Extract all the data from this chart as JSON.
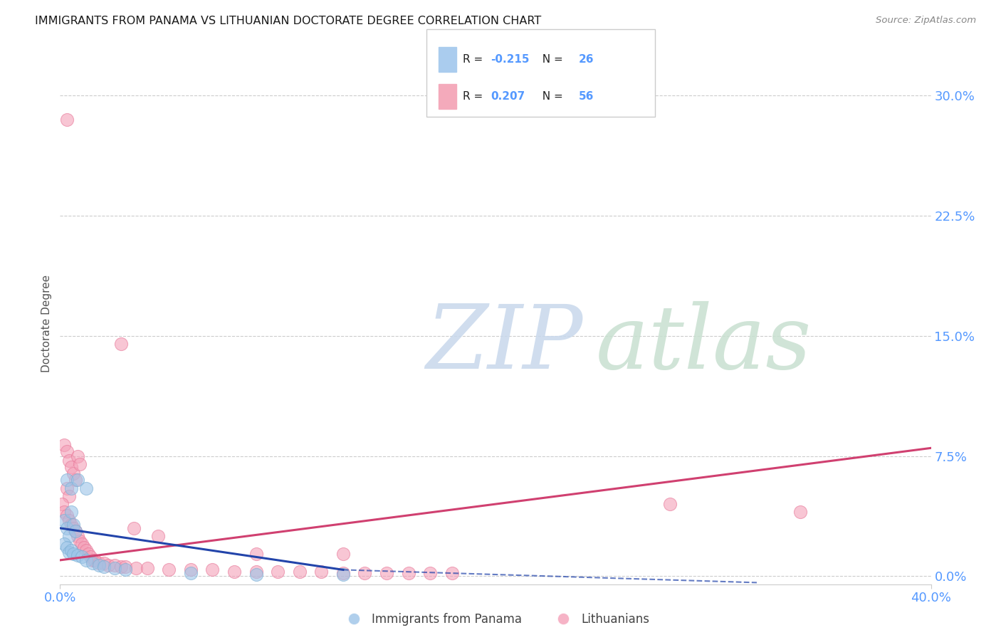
{
  "title": "IMMIGRANTS FROM PANAMA VS LITHUANIAN DOCTORATE DEGREE CORRELATION CHART",
  "source": "Source: ZipAtlas.com",
  "ylabel": "Doctorate Degree",
  "xlim": [
    0.0,
    0.4
  ],
  "ylim": [
    -0.005,
    0.32
  ],
  "yticks": [
    0.0,
    0.075,
    0.15,
    0.225,
    0.3
  ],
  "xticks": [
    0.0,
    0.4
  ],
  "legend_bottom": [
    "Immigrants from Panama",
    "Lithuanians"
  ],
  "panama_color": "#9cc4e8",
  "panama_edge_color": "#7bafd4",
  "lithuanian_color": "#f4a0b8",
  "lithuanian_edge_color": "#e8799a",
  "panama_trend_color": "#2244aa",
  "lithuanian_trend_color": "#d04070",
  "watermark_zip_color": "#c8d8ec",
  "watermark_atlas_color": "#c8e0d0",
  "background_color": "#ffffff",
  "grid_color": "#cccccc",
  "axis_label_color": "#5599ff",
  "title_color": "#1a1a1a",
  "title_fontsize": 11.5,
  "panama_R": "-0.215",
  "panama_N": "26",
  "lithuanian_R": "0.207",
  "lithuanian_N": "56",
  "panama_legend_color": "#aaccee",
  "lithuanian_legend_color": "#f4aabb",
  "panama_points": [
    [
      0.003,
      0.06
    ],
    [
      0.005,
      0.055
    ],
    [
      0.008,
      0.06
    ],
    [
      0.012,
      0.055
    ],
    [
      0.002,
      0.035
    ],
    [
      0.005,
      0.04
    ],
    [
      0.003,
      0.03
    ],
    [
      0.006,
      0.032
    ],
    [
      0.004,
      0.025
    ],
    [
      0.007,
      0.028
    ],
    [
      0.002,
      0.02
    ],
    [
      0.003,
      0.018
    ],
    [
      0.004,
      0.015
    ],
    [
      0.005,
      0.016
    ],
    [
      0.006,
      0.014
    ],
    [
      0.008,
      0.013
    ],
    [
      0.01,
      0.012
    ],
    [
      0.012,
      0.01
    ],
    [
      0.015,
      0.008
    ],
    [
      0.018,
      0.007
    ],
    [
      0.02,
      0.006
    ],
    [
      0.025,
      0.005
    ],
    [
      0.03,
      0.004
    ],
    [
      0.06,
      0.002
    ],
    [
      0.09,
      0.001
    ],
    [
      0.13,
      0.001
    ]
  ],
  "lithuanian_points": [
    [
      0.003,
      0.285
    ],
    [
      0.028,
      0.145
    ],
    [
      0.002,
      0.082
    ],
    [
      0.003,
      0.078
    ],
    [
      0.004,
      0.072
    ],
    [
      0.005,
      0.068
    ],
    [
      0.006,
      0.064
    ],
    [
      0.007,
      0.06
    ],
    [
      0.008,
      0.075
    ],
    [
      0.009,
      0.07
    ],
    [
      0.003,
      0.055
    ],
    [
      0.004,
      0.05
    ],
    [
      0.001,
      0.045
    ],
    [
      0.002,
      0.04
    ],
    [
      0.003,
      0.038
    ],
    [
      0.004,
      0.035
    ],
    [
      0.005,
      0.032
    ],
    [
      0.006,
      0.03
    ],
    [
      0.007,
      0.028
    ],
    [
      0.008,
      0.025
    ],
    [
      0.009,
      0.022
    ],
    [
      0.01,
      0.02
    ],
    [
      0.011,
      0.018
    ],
    [
      0.012,
      0.016
    ],
    [
      0.013,
      0.014
    ],
    [
      0.014,
      0.012
    ],
    [
      0.015,
      0.01
    ],
    [
      0.016,
      0.01
    ],
    [
      0.018,
      0.008
    ],
    [
      0.02,
      0.008
    ],
    [
      0.022,
      0.007
    ],
    [
      0.025,
      0.007
    ],
    [
      0.028,
      0.006
    ],
    [
      0.03,
      0.006
    ],
    [
      0.035,
      0.005
    ],
    [
      0.04,
      0.005
    ],
    [
      0.05,
      0.004
    ],
    [
      0.06,
      0.004
    ],
    [
      0.07,
      0.004
    ],
    [
      0.08,
      0.003
    ],
    [
      0.09,
      0.003
    ],
    [
      0.1,
      0.003
    ],
    [
      0.11,
      0.003
    ],
    [
      0.12,
      0.003
    ],
    [
      0.13,
      0.002
    ],
    [
      0.14,
      0.002
    ],
    [
      0.15,
      0.002
    ],
    [
      0.16,
      0.002
    ],
    [
      0.17,
      0.002
    ],
    [
      0.18,
      0.002
    ],
    [
      0.034,
      0.03
    ],
    [
      0.045,
      0.025
    ],
    [
      0.28,
      0.045
    ],
    [
      0.34,
      0.04
    ],
    [
      0.09,
      0.014
    ],
    [
      0.13,
      0.014
    ]
  ],
  "panama_trend": {
    "x_start": 0.0,
    "y_start": 0.03,
    "x_end": 0.13,
    "y_end": 0.004,
    "x_dash_end": 0.32,
    "y_dash_end": -0.004
  },
  "lithuanian_trend": {
    "x_start": 0.0,
    "y_start": 0.01,
    "x_end": 0.4,
    "y_end": 0.08
  }
}
